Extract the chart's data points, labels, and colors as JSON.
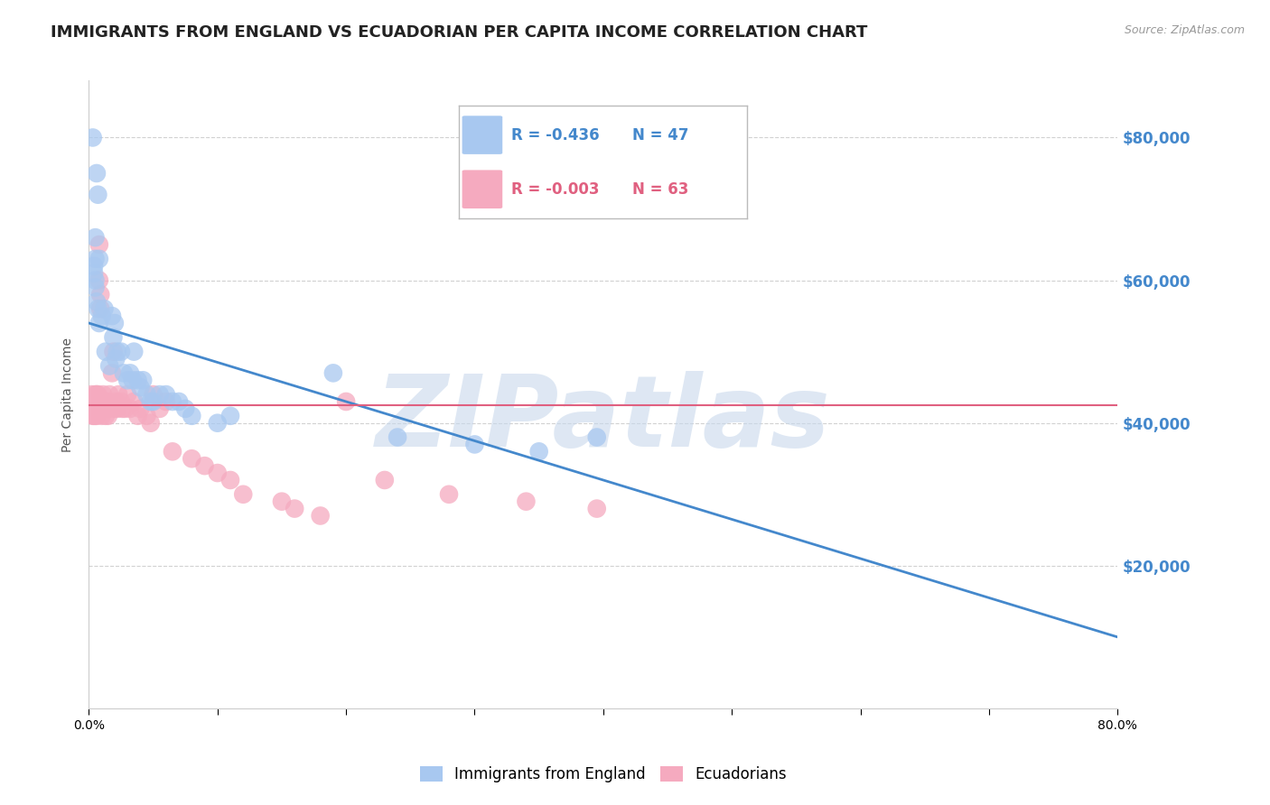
{
  "title": "IMMIGRANTS FROM ENGLAND VS ECUADORIAN PER CAPITA INCOME CORRELATION CHART",
  "source": "Source: ZipAtlas.com",
  "ylabel": "Per Capita Income",
  "right_ytick_labels": [
    "$80,000",
    "$60,000",
    "$40,000",
    "$20,000"
  ],
  "right_ytick_values": [
    80000,
    60000,
    40000,
    20000
  ],
  "ylim": [
    0,
    88000
  ],
  "xlim": [
    0.0,
    0.8
  ],
  "blue_label": "Immigrants from England",
  "pink_label": "Ecuadorians",
  "blue_R": "-0.436",
  "blue_N": "47",
  "pink_R": "-0.003",
  "pink_N": "63",
  "blue_color": "#A8C8F0",
  "pink_color": "#F5AABF",
  "blue_line_color": "#4488CC",
  "pink_line_color": "#E06080",
  "watermark": "ZIPatlas",
  "watermark_color": "#C8D8EC",
  "blue_scatter_x": [
    0.003,
    0.006,
    0.007,
    0.005,
    0.005,
    0.008,
    0.004,
    0.004,
    0.005,
    0.005,
    0.006,
    0.007,
    0.008,
    0.01,
    0.012,
    0.013,
    0.016,
    0.018,
    0.02,
    0.019,
    0.022,
    0.021,
    0.025,
    0.027,
    0.03,
    0.032,
    0.034,
    0.035,
    0.038,
    0.04,
    0.042,
    0.045,
    0.048,
    0.05,
    0.055,
    0.06,
    0.065,
    0.07,
    0.075,
    0.08,
    0.1,
    0.11,
    0.19,
    0.24,
    0.3,
    0.35,
    0.395
  ],
  "blue_scatter_y": [
    80000,
    75000,
    72000,
    66000,
    63000,
    63000,
    62000,
    61000,
    60000,
    59000,
    57000,
    56000,
    54000,
    55000,
    56000,
    50000,
    48000,
    55000,
    54000,
    52000,
    50000,
    49000,
    50000,
    47000,
    46000,
    47000,
    46000,
    50000,
    46000,
    45000,
    46000,
    44000,
    43000,
    43000,
    44000,
    44000,
    43000,
    43000,
    42000,
    41000,
    40000,
    41000,
    47000,
    38000,
    37000,
    36000,
    38000
  ],
  "pink_scatter_x": [
    0.002,
    0.002,
    0.003,
    0.003,
    0.003,
    0.004,
    0.004,
    0.004,
    0.005,
    0.005,
    0.005,
    0.006,
    0.006,
    0.006,
    0.007,
    0.007,
    0.008,
    0.008,
    0.009,
    0.009,
    0.01,
    0.01,
    0.011,
    0.012,
    0.013,
    0.013,
    0.014,
    0.015,
    0.015,
    0.016,
    0.018,
    0.019,
    0.02,
    0.021,
    0.022,
    0.023,
    0.025,
    0.026,
    0.028,
    0.03,
    0.032,
    0.035,
    0.038,
    0.04,
    0.045,
    0.048,
    0.05,
    0.055,
    0.06,
    0.065,
    0.08,
    0.09,
    0.1,
    0.11,
    0.12,
    0.15,
    0.16,
    0.18,
    0.2,
    0.23,
    0.28,
    0.34,
    0.395
  ],
  "pink_scatter_y": [
    44000,
    42000,
    43000,
    42000,
    41000,
    43000,
    42000,
    41000,
    44000,
    42000,
    41000,
    44000,
    42000,
    41000,
    44000,
    42000,
    65000,
    60000,
    58000,
    56000,
    42000,
    41000,
    44000,
    43000,
    42000,
    41000,
    43000,
    42000,
    41000,
    44000,
    47000,
    50000,
    42000,
    43000,
    42000,
    44000,
    43000,
    42000,
    42000,
    44000,
    42000,
    43000,
    41000,
    42000,
    41000,
    40000,
    44000,
    42000,
    43000,
    36000,
    35000,
    34000,
    33000,
    32000,
    30000,
    29000,
    28000,
    27000,
    43000,
    32000,
    30000,
    29000,
    28000
  ],
  "blue_line_x": [
    0.0,
    0.8
  ],
  "blue_line_y": [
    54000,
    10000
  ],
  "pink_line_y": [
    42500,
    42500
  ],
  "grid_color": "#CCCCCC",
  "bg_color": "#FFFFFF",
  "title_fontsize": 13,
  "axis_label_fontsize": 10,
  "tick_fontsize": 10,
  "legend_fontsize": 12
}
